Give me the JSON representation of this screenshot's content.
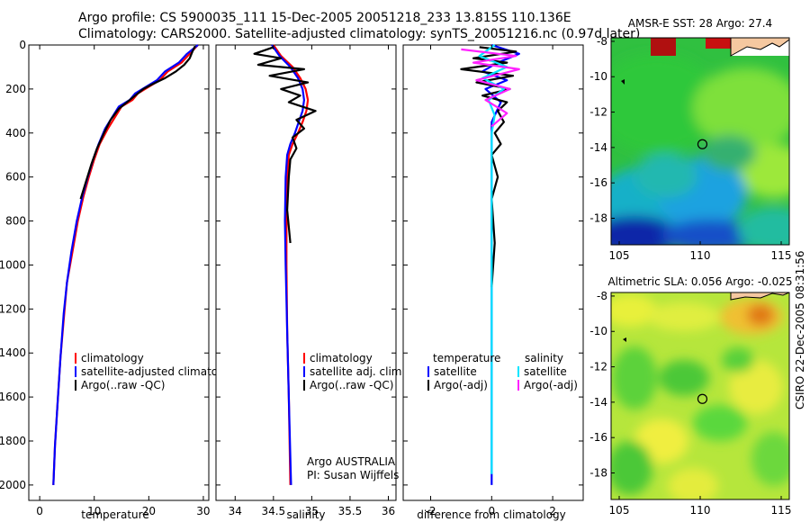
{
  "header": {
    "line1": "Argo profile: CS 5900035_111 15-Dec-2005 20051218_233 13.815S 110.136E",
    "line2": "Climatology: CARS2000. Satellite-adjusted climatology: synTS_20051216.nc (0.97d later)"
  },
  "side_stamp": "CSIRO 22-Dec-2005 08:31:56",
  "colors": {
    "climatology": "#ff0000",
    "satellite": "#0000ff",
    "argo": "#000000",
    "sat_diff": "#00e5ff",
    "argo_adj": "#ff22ff"
  },
  "chart_data": [
    {
      "id": "temperature",
      "type": "line",
      "xlabel": "temperature",
      "xlim": [
        -2,
        31
      ],
      "ylim": [
        0,
        2070
      ],
      "xticks": [
        0,
        10,
        20,
        30
      ],
      "yticks": [
        0,
        200,
        400,
        600,
        800,
        1000,
        1200,
        1400,
        1600,
        1800,
        2000
      ],
      "legend": [
        "climatology",
        "satellite-adjusted climatology",
        "Argo(..raw -QC)"
      ],
      "series": [
        {
          "name": "climatology",
          "color": "#ff0000",
          "x": [
            29,
            27.5,
            26,
            23.5,
            22,
            20,
            18,
            17,
            15,
            14,
            12.5,
            11,
            10,
            9,
            8,
            7,
            6,
            5,
            4.5,
            3.8,
            3.3,
            2.8,
            2.5
          ],
          "y": [
            0,
            40,
            80,
            120,
            160,
            190,
            220,
            250,
            280,
            320,
            380,
            450,
            520,
            600,
            690,
            800,
            940,
            1080,
            1220,
            1420,
            1620,
            1820,
            2000
          ]
        },
        {
          "name": "satellite-adjusted climatology",
          "color": "#0000ff",
          "x": [
            29,
            27,
            25.5,
            23,
            21.5,
            19.5,
            17.5,
            16.5,
            14.5,
            13.5,
            12,
            10.8,
            9.8,
            8.8,
            7.8,
            6.8,
            5.8,
            5,
            4.4,
            3.8,
            3.3,
            2.8,
            2.5
          ],
          "y": [
            0,
            40,
            80,
            120,
            160,
            190,
            220,
            250,
            280,
            320,
            380,
            450,
            520,
            600,
            690,
            800,
            940,
            1080,
            1220,
            1420,
            1620,
            1820,
            2000
          ]
        },
        {
          "name": "Argo(..raw -QC)",
          "color": "#000000",
          "x": [
            28.5,
            28,
            27.5,
            26.5,
            25,
            23,
            20.5,
            19,
            17.5,
            16,
            14.5,
            13,
            11.8,
            10.5,
            9.5,
            8.5,
            7.5
          ],
          "y": [
            5,
            30,
            60,
            90,
            120,
            150,
            180,
            200,
            230,
            260,
            290,
            340,
            400,
            470,
            540,
            620,
            700
          ]
        }
      ]
    },
    {
      "id": "salinity",
      "type": "line",
      "xlabel": "salinity",
      "xlim": [
        33.75,
        36.1
      ],
      "ylim": [
        0,
        2070
      ],
      "xticks": [
        34,
        34.5,
        35,
        35.5,
        36
      ],
      "legend": [
        "climatology",
        "satellite adj. clim.",
        "Argo(..raw -QC)"
      ],
      "annotations": [
        "Argo AUSTRALIA",
        "PI: Susan Wijffels"
      ],
      "series": [
        {
          "name": "climatology",
          "color": "#ff0000",
          "x": [
            34.5,
            34.6,
            34.75,
            34.85,
            34.92,
            34.95,
            34.93,
            34.88,
            34.82,
            34.75,
            34.7,
            34.68,
            34.67,
            34.67,
            34.68,
            34.7,
            34.72
          ],
          "y": [
            0,
            50,
            100,
            150,
            200,
            250,
            300,
            350,
            400,
            450,
            500,
            600,
            800,
            1000,
            1300,
            1600,
            2000
          ]
        },
        {
          "name": "satellite adj. clim.",
          "color": "#0000ff",
          "x": [
            34.48,
            34.58,
            34.72,
            34.82,
            34.88,
            34.9,
            34.88,
            34.83,
            34.78,
            34.72,
            34.68,
            34.66,
            34.65,
            34.66,
            34.68,
            34.7,
            34.73
          ],
          "y": [
            0,
            50,
            100,
            150,
            200,
            250,
            300,
            350,
            400,
            450,
            500,
            600,
            800,
            1000,
            1300,
            1600,
            2000
          ]
        },
        {
          "name": "Argo(..raw -QC)",
          "color": "#000000",
          "x": [
            34.5,
            34.25,
            34.6,
            34.3,
            34.9,
            34.45,
            34.95,
            34.6,
            34.85,
            34.7,
            35.05,
            34.8,
            34.9,
            34.75,
            34.8,
            34.72,
            34.7,
            34.68,
            34.72
          ],
          "y": [
            10,
            40,
            60,
            90,
            110,
            140,
            170,
            200,
            230,
            260,
            300,
            340,
            380,
            420,
            470,
            520,
            600,
            750,
            900
          ]
        }
      ]
    },
    {
      "id": "difference",
      "type": "line",
      "xlabel": "difference from climatology",
      "xlim": [
        -2.9,
        3.0
      ],
      "ylim": [
        0,
        2070
      ],
      "xticks": [
        -2,
        0,
        2
      ],
      "legend": {
        "temperature": [
          "satellite",
          "Argo(-adj)"
        ],
        "salinity": [
          "satellite",
          "Argo(-adj)"
        ]
      },
      "series": [
        {
          "name": "temperature satellite",
          "color": "#0000ff",
          "x": [
            0.0,
            0.9,
            0.2,
            -0.3,
            0.5,
            -0.2,
            0.3,
            0.0,
            0.0,
            0.0,
            0.0
          ],
          "y": [
            0,
            40,
            80,
            120,
            160,
            200,
            260,
            350,
            600,
            1000,
            2000
          ]
        },
        {
          "name": "temperature Argo(-adj)",
          "color": "#000000",
          "x": [
            -0.4,
            0.8,
            -0.6,
            0.5,
            -1.0,
            0.7,
            -0.5,
            0.6,
            -0.3,
            0.5,
            0.2,
            0.4,
            0.1,
            0.3,
            0.0,
            0.2,
            0.0,
            0.1,
            0.0
          ],
          "y": [
            10,
            30,
            60,
            80,
            110,
            140,
            170,
            200,
            230,
            260,
            300,
            350,
            400,
            450,
            500,
            600,
            700,
            900,
            1100
          ]
        },
        {
          "name": "salinity satellite",
          "color": "#00e5ff",
          "x": [
            0.1,
            -0.4,
            0.5,
            -0.3,
            0.4,
            -0.1,
            0.1,
            0.0,
            0.0,
            0.0
          ],
          "y": [
            0,
            50,
            100,
            150,
            200,
            250,
            320,
            400,
            800,
            1950
          ]
        },
        {
          "name": "salinity Argo(-adj)",
          "color": "#ff22ff",
          "x": [
            -1.0,
            0.8,
            -0.6,
            0.9,
            -0.5,
            0.6,
            -0.2,
            0.5,
            0.0
          ],
          "y": [
            20,
            50,
            80,
            110,
            160,
            200,
            250,
            310,
            370
          ]
        }
      ]
    },
    {
      "id": "sst-map",
      "type": "heatmap",
      "title": "AMSR-E SST: 28  Argo: 27.4",
      "xlim": [
        104.5,
        115.5
      ],
      "ylim": [
        -19.5,
        -7.8
      ],
      "xticks": [
        105,
        110,
        115
      ],
      "yticks": [
        -8,
        -10,
        -12,
        -14,
        -16,
        -18
      ],
      "marker": {
        "lon": 110.136,
        "lat": -13.815
      }
    },
    {
      "id": "sla-map",
      "type": "heatmap",
      "title": "Altimetric SLA: 0.056  Argo: -0.025",
      "xlim": [
        104.5,
        115.5
      ],
      "ylim": [
        -19.5,
        -7.8
      ],
      "xticks": [
        105,
        110,
        115
      ],
      "yticks": [
        -8,
        -10,
        -12,
        -14,
        -16,
        -18
      ],
      "marker": {
        "lon": 110.136,
        "lat": -13.815
      }
    }
  ]
}
